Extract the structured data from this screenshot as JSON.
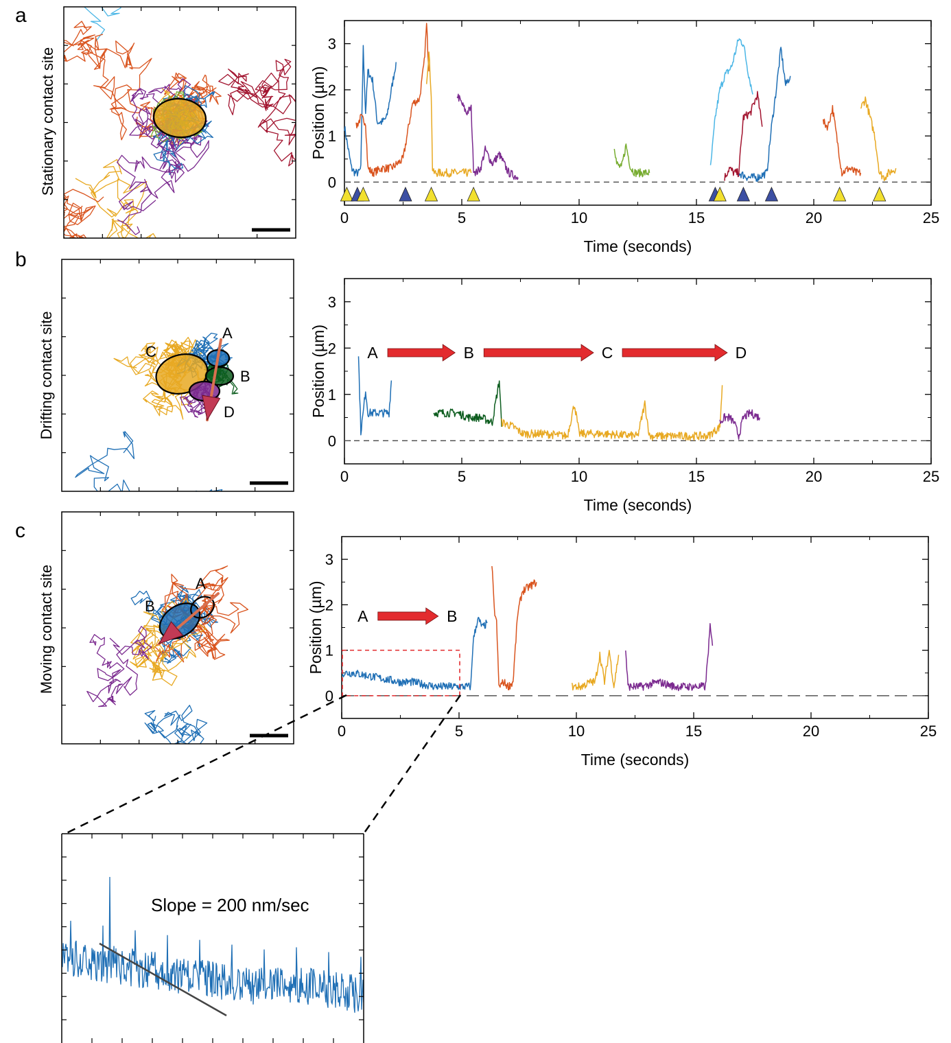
{
  "colors": {
    "blue": "#1f6fb5",
    "orange": "#d9541e",
    "yellow": "#e8a923",
    "purple": "#7b2a8f",
    "green": "#77ac30",
    "lightblue": "#4bb6e6",
    "darkred": "#a2142f",
    "darkgreen": "#0d5d1f",
    "arrow_red": "#e32b2e",
    "marker_blue": "#3c4fa3",
    "marker_yellow": "#f2e02f"
  },
  "panels": {
    "a": {
      "label": "a",
      "trajectory_ylabel": "Stationary contact site"
    },
    "b": {
      "label": "b",
      "trajectory_ylabel": "Drifting contact site",
      "site_labels": [
        "A",
        "B",
        "C",
        "D"
      ]
    },
    "c": {
      "label": "c",
      "trajectory_ylabel": "Moving contact site",
      "site_labels": [
        "A",
        "B"
      ]
    },
    "inset": {
      "annotation": "Slope = 200 nm/sec"
    }
  },
  "chart_data": [
    {
      "id": "a",
      "type": "line",
      "xlabel": "Time (seconds)",
      "ylabel": "Position (µm)",
      "xlim": [
        0,
        25
      ],
      "ylim": [
        -0.5,
        3.5
      ],
      "xticks": [
        "0",
        "5",
        "10",
        "15",
        "20",
        "25"
      ],
      "yticks": [
        "0",
        "1",
        "2",
        "3"
      ],
      "baseline": 0,
      "series": [
        {
          "color": "#1f6fb5",
          "x": [
            0.0,
            0.3,
            0.45,
            0.6,
            0.7,
            0.8,
            0.9,
            1.0,
            1.2,
            1.4,
            1.6,
            1.8,
            2.0,
            2.2
          ],
          "y": [
            1.2,
            0.3,
            0.2,
            0.2,
            0.3,
            2.9,
            1.5,
            2.4,
            2.2,
            1.3,
            1.3,
            1.4,
            2.0,
            2.6
          ]
        },
        {
          "color": "#d9541e",
          "x": [
            0.5,
            0.7,
            0.9,
            1.0,
            1.2,
            1.6,
            2.0,
            2.5,
            2.7,
            2.9,
            3.2,
            3.4,
            3.5,
            3.6
          ],
          "y": [
            1.2,
            1.4,
            1.3,
            0.3,
            0.2,
            0.3,
            0.3,
            0.5,
            1.1,
            1.7,
            1.8,
            2.6,
            3.4,
            2.4
          ]
        },
        {
          "color": "#e8a923",
          "x": [
            3.5,
            3.6,
            3.7,
            3.75,
            3.8,
            4.2,
            4.6,
            5.0,
            5.4
          ],
          "y": [
            2.2,
            2.8,
            1.9,
            0.3,
            0.2,
            0.2,
            0.2,
            0.2,
            0.2
          ]
        },
        {
          "color": "#7b2a8f",
          "x": [
            4.8,
            5.2,
            5.4,
            5.5,
            5.6,
            5.8,
            6.0,
            6.3,
            6.6,
            7.0,
            7.4
          ],
          "y": [
            1.9,
            1.5,
            1.6,
            0.3,
            0.2,
            0.3,
            0.7,
            0.4,
            0.6,
            0.2,
            0.1
          ]
        },
        {
          "color": "#77ac30",
          "x": [
            11.5,
            11.6,
            11.8,
            12.0,
            12.2,
            12.4,
            12.7,
            13.0
          ],
          "y": [
            0.8,
            0.4,
            0.3,
            0.8,
            0.3,
            0.2,
            0.2,
            0.2
          ]
        },
        {
          "color": "#4bb6e6",
          "x": [
            15.6,
            15.8,
            16.0,
            16.2,
            16.5,
            16.8,
            17.0,
            17.2,
            17.4
          ],
          "y": [
            0.3,
            1.4,
            2.0,
            2.3,
            2.5,
            3.1,
            3.0,
            2.4,
            1.9
          ]
        },
        {
          "color": "#a2142f",
          "x": [
            16.2,
            16.4,
            16.6,
            16.8,
            17.0,
            17.3,
            17.6,
            17.8
          ],
          "y": [
            0.1,
            0.3,
            0.2,
            0.2,
            1.4,
            1.5,
            1.9,
            1.2
          ]
        },
        {
          "color": "#1f6fb5",
          "x": [
            16.8,
            17.2,
            17.6,
            18.0,
            18.2,
            18.4,
            18.6,
            18.8,
            19.0
          ],
          "y": [
            0.2,
            0.1,
            0.1,
            0.2,
            1.2,
            2.0,
            2.9,
            2.1,
            2.3
          ]
        },
        {
          "color": "#d9541e",
          "x": [
            20.4,
            20.6,
            20.8,
            21.0,
            21.2,
            21.5,
            21.8,
            22.0
          ],
          "y": [
            1.3,
            1.2,
            1.6,
            0.9,
            0.2,
            0.3,
            0.2,
            0.2
          ]
        },
        {
          "color": "#e8a923",
          "x": [
            22.0,
            22.2,
            22.4,
            22.6,
            22.8,
            23.0,
            23.2,
            23.5
          ],
          "y": [
            1.6,
            1.8,
            1.4,
            1.0,
            0.2,
            0.1,
            0.2,
            0.3
          ]
        }
      ],
      "markers": [
        {
          "x": 0.1,
          "color": "yellow"
        },
        {
          "x": 0.55,
          "color": "blue"
        },
        {
          "x": 0.8,
          "color": "yellow"
        },
        {
          "x": 2.6,
          "color": "blue"
        },
        {
          "x": 3.7,
          "color": "yellow"
        },
        {
          "x": 5.5,
          "color": "yellow"
        },
        {
          "x": 15.8,
          "color": "blue"
        },
        {
          "x": 16.0,
          "color": "yellow"
        },
        {
          "x": 17.0,
          "color": "blue"
        },
        {
          "x": 18.2,
          "color": "blue"
        },
        {
          "x": 21.1,
          "color": "yellow"
        },
        {
          "x": 22.8,
          "color": "yellow"
        }
      ]
    },
    {
      "id": "b",
      "type": "line",
      "xlabel": "Time (seconds)",
      "ylabel": "Position (µm)",
      "xlim": [
        0,
        25
      ],
      "ylim": [
        -0.5,
        3.5
      ],
      "xticks": [
        "0",
        "5",
        "10",
        "15",
        "20",
        "25"
      ],
      "yticks": [
        "0",
        "1",
        "2",
        "3"
      ],
      "baseline": 0,
      "sequence": [
        "A",
        "B",
        "C",
        "D"
      ],
      "series": [
        {
          "color": "#1f6fb5",
          "x": [
            0.6,
            0.7,
            0.8,
            0.9,
            1.0,
            1.3,
            1.6,
            1.9,
            2.0
          ],
          "y": [
            1.8,
            0.2,
            0.6,
            1.1,
            0.6,
            0.6,
            0.6,
            0.6,
            1.3
          ]
        },
        {
          "color": "#0d5d1f",
          "x": [
            3.8,
            4.3,
            4.8,
            5.3,
            5.8,
            6.3,
            6.6,
            6.7
          ],
          "y": [
            0.6,
            0.6,
            0.6,
            0.5,
            0.5,
            0.4,
            1.3,
            0.3
          ]
        },
        {
          "color": "#e8a923",
          "x": [
            6.7,
            7.2,
            7.6,
            8.5,
            9.5,
            9.8,
            10.0,
            11.0,
            12.5,
            12.8,
            13.0,
            14.0,
            15.5,
            16.0,
            16.1
          ],
          "y": [
            0.4,
            0.3,
            0.15,
            0.15,
            0.1,
            0.8,
            0.15,
            0.15,
            0.1,
            0.8,
            0.1,
            0.1,
            0.1,
            0.3,
            1.2
          ]
        },
        {
          "color": "#7b2a8f",
          "x": [
            16.0,
            16.2,
            16.4,
            16.6,
            16.8,
            17.0,
            17.3,
            17.7
          ],
          "y": [
            0.4,
            0.5,
            0.5,
            0.4,
            0.1,
            0.5,
            0.6,
            0.5
          ]
        }
      ]
    },
    {
      "id": "c",
      "type": "line",
      "xlabel": "Time (seconds)",
      "ylabel": "Position (µm)",
      "xlim": [
        0,
        25
      ],
      "ylim": [
        -0.5,
        3.5
      ],
      "xticks": [
        "0",
        "5",
        "10",
        "15",
        "20",
        "25"
      ],
      "yticks": [
        "0",
        "1",
        "2",
        "3"
      ],
      "baseline": 0,
      "sequence": [
        "A",
        "B"
      ],
      "series": [
        {
          "color": "#1f6fb5",
          "x": [
            0.0,
            0.5,
            1.0,
            1.5,
            2.0,
            2.5,
            3.0,
            3.5,
            4.0,
            4.5,
            5.0,
            5.5,
            5.6,
            5.8,
            6.0,
            6.2
          ],
          "y": [
            0.5,
            0.5,
            0.45,
            0.4,
            0.35,
            0.3,
            0.3,
            0.25,
            0.2,
            0.2,
            0.2,
            0.2,
            1.2,
            1.7,
            1.5,
            1.6
          ]
        },
        {
          "color": "#d9541e",
          "x": [
            6.4,
            6.5,
            6.6,
            6.7,
            6.9,
            7.1,
            7.3,
            7.5,
            7.7,
            8.0,
            8.3
          ],
          "y": [
            2.9,
            1.9,
            1.6,
            0.2,
            0.3,
            0.2,
            0.3,
            1.8,
            2.3,
            2.4,
            2.5
          ]
        },
        {
          "color": "#e8a923",
          "x": [
            9.8,
            10.2,
            10.6,
            10.8,
            11.0,
            11.2,
            11.4,
            11.6,
            11.8
          ],
          "y": [
            0.2,
            0.2,
            0.3,
            0.3,
            0.9,
            0.3,
            1.0,
            0.2,
            0.9
          ]
        },
        {
          "color": "#7b2a8f",
          "x": [
            12.1,
            12.2,
            12.8,
            13.5,
            14.2,
            14.9,
            15.5,
            15.7,
            15.8
          ],
          "y": [
            1.0,
            0.2,
            0.2,
            0.3,
            0.2,
            0.2,
            0.2,
            1.5,
            1.1
          ]
        }
      ],
      "selection_box": {
        "x": [
          0,
          5
        ],
        "y": [
          0,
          1
        ]
      }
    },
    {
      "id": "inset",
      "type": "line",
      "annotation": "Slope = 200 nm/sec",
      "fit_slope_nm_per_s": 200
    }
  ]
}
